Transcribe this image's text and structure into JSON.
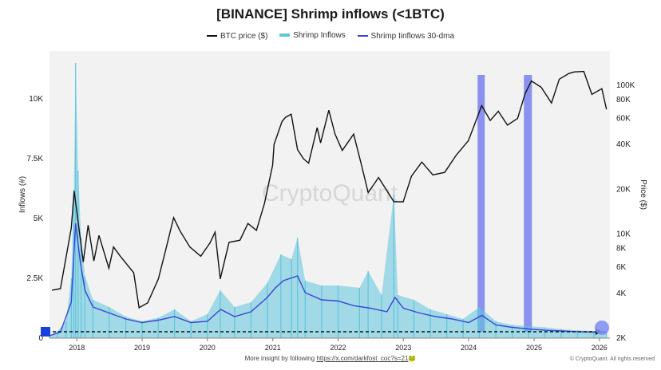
{
  "chart_data": {
    "type": "line",
    "title": "[BINANCE] Shrimp inflows (<1BTC)",
    "ylabel": "Inflows (#)",
    "y2label": "Price ($)",
    "ylim": [
      0,
      12000
    ],
    "y2_scale": "log",
    "y2lim": [
      2000,
      170000
    ],
    "xlim": [
      "2017-08-01",
      "2026-03-01"
    ],
    "yticks": [
      0,
      2500,
      5000,
      7500,
      10000
    ],
    "ytick_labels": [
      "0",
      "2.5K",
      "5K",
      "7.5K",
      "10K"
    ],
    "y2ticks": [
      2000,
      4000,
      6000,
      8000,
      10000,
      20000,
      40000,
      60000,
      80000,
      100000
    ],
    "y2tick_labels": [
      "2K",
      "4K",
      "6K",
      "8K",
      "10K",
      "20K",
      "40K",
      "60K",
      "80K",
      "100K"
    ],
    "xticks": [
      "2018-01-01",
      "2019-01-01",
      "2020-01-01",
      "2021-01-01",
      "2022-01-01",
      "2023-01-01",
      "2024-01-01",
      "2025-01-01",
      "2026-01-01"
    ],
    "xtick_labels": [
      "2018",
      "2019",
      "2020",
      "2021",
      "2022",
      "2023",
      "2024",
      "2025",
      "2026"
    ],
    "legend_position": "top-center",
    "series": [
      {
        "name": "BTC price ($)",
        "axis": "right",
        "color": "#111111",
        "x": [
          "2017-08-15",
          "2017-10-01",
          "2017-12-01",
          "2017-12-17",
          "2018-02-06",
          "2018-03-05",
          "2018-04-06",
          "2018-05-05",
          "2018-06-29",
          "2018-07-25",
          "2018-09-01",
          "2018-11-15",
          "2018-12-15",
          "2019-02-01",
          "2019-04-02",
          "2019-05-15",
          "2019-06-26",
          "2019-08-01",
          "2019-09-25",
          "2019-11-25",
          "2020-01-15",
          "2020-02-13",
          "2020-03-13",
          "2020-05-01",
          "2020-07-01",
          "2020-08-15",
          "2020-10-01",
          "2020-11-15",
          "2020-12-31",
          "2021-01-08",
          "2021-02-21",
          "2021-03-13",
          "2021-04-14",
          "2021-05-19",
          "2021-06-22",
          "2021-07-20",
          "2021-09-06",
          "2021-09-25",
          "2021-11-10",
          "2021-12-15",
          "2022-01-24",
          "2022-03-29",
          "2022-05-12",
          "2022-06-18",
          "2022-08-15",
          "2022-11-09",
          "2022-12-31",
          "2023-02-15",
          "2023-04-14",
          "2023-06-15",
          "2023-08-20",
          "2023-10-24",
          "2023-12-31",
          "2024-03-14",
          "2024-05-01",
          "2024-06-15",
          "2024-08-05",
          "2024-10-01",
          "2024-11-12",
          "2024-12-17",
          "2025-02-10",
          "2025-04-08",
          "2025-05-22",
          "2025-07-14",
          "2025-08-14",
          "2025-10-06",
          "2025-11-20",
          "2026-01-15",
          "2026-02-10"
        ],
        "values": [
          4200,
          4300,
          11000,
          19500,
          6500,
          11500,
          6600,
          9800,
          5900,
          8200,
          7100,
          5500,
          3200,
          3450,
          5000,
          8000,
          12900,
          10500,
          8200,
          7100,
          8700,
          10300,
          5000,
          8800,
          9100,
          11800,
          10600,
          16000,
          29000,
          40000,
          57000,
          61000,
          64000,
          37000,
          32000,
          30000,
          52000,
          41000,
          68000,
          47000,
          36500,
          47000,
          29000,
          19000,
          24000,
          16500,
          16500,
          24500,
          30500,
          25000,
          26000,
          34000,
          42500,
          73000,
          58000,
          67000,
          54000,
          60000,
          88000,
          107000,
          97000,
          76000,
          110000,
          120000,
          123000,
          124000,
          87000,
          95000,
          69000
        ]
      },
      {
        "name": "Shrimp Inflows",
        "axis": "left",
        "color": "#5ec5dd",
        "x": [
          "2017-08-01",
          "2017-09-15",
          "2017-11-01",
          "2017-12-01",
          "2017-12-15",
          "2017-12-25",
          "2018-01-08",
          "2018-01-25",
          "2018-02-15",
          "2018-04-01",
          "2018-07-01",
          "2018-10-01",
          "2019-01-01",
          "2019-04-01",
          "2019-07-01",
          "2019-10-01",
          "2020-01-01",
          "2020-03-13",
          "2020-06-01",
          "2020-09-01",
          "2020-12-01",
          "2021-02-15",
          "2021-04-15",
          "2021-05-19",
          "2021-07-01",
          "2021-10-01",
          "2022-01-01",
          "2022-05-01",
          "2022-06-18",
          "2022-09-01",
          "2022-11-09",
          "2022-12-01",
          "2023-03-01",
          "2023-06-01",
          "2023-09-01",
          "2023-12-01",
          "2024-03-01",
          "2024-06-01",
          "2024-09-01",
          "2024-12-01",
          "2025-03-01",
          "2025-06-01",
          "2025-09-01",
          "2025-12-01",
          "2026-02-10"
        ],
        "values": [
          100,
          300,
          700,
          2500,
          6200,
          11500,
          7000,
          4200,
          2600,
          1600,
          1300,
          900,
          700,
          850,
          1200,
          700,
          1000,
          2000,
          1300,
          1500,
          2300,
          3500,
          3300,
          4200,
          2400,
          2200,
          2200,
          2100,
          2800,
          1800,
          6000,
          1800,
          1600,
          1200,
          1000,
          800,
          1300,
          700,
          550,
          500,
          450,
          380,
          320,
          300,
          300
        ]
      },
      {
        "name": "Shrimp Iinflows 30-dma",
        "axis": "left",
        "color": "#3a44d6",
        "x": [
          "2017-08-01",
          "2017-10-01",
          "2017-12-01",
          "2017-12-25",
          "2018-01-20",
          "2018-02-15",
          "2018-04-01",
          "2018-07-01",
          "2018-10-01",
          "2019-01-01",
          "2019-04-01",
          "2019-07-01",
          "2019-10-01",
          "2020-01-01",
          "2020-03-15",
          "2020-06-01",
          "2020-09-01",
          "2020-12-01",
          "2021-01-15",
          "2021-03-01",
          "2021-05-19",
          "2021-07-01",
          "2021-10-01",
          "2022-01-01",
          "2022-04-01",
          "2022-07-01",
          "2022-10-01",
          "2022-11-15",
          "2023-01-01",
          "2023-04-01",
          "2023-07-01",
          "2023-10-01",
          "2024-01-01",
          "2024-03-15",
          "2024-06-01",
          "2024-09-01",
          "2024-12-01",
          "2025-03-01",
          "2025-06-01",
          "2025-09-01",
          "2025-12-01",
          "2026-02-10"
        ],
        "values": [
          100,
          250,
          1500,
          4800,
          3200,
          2000,
          1300,
          1050,
          800,
          650,
          750,
          900,
          650,
          700,
          1200,
          900,
          1100,
          1700,
          2100,
          2400,
          2600,
          1900,
          1600,
          1550,
          1350,
          1250,
          1100,
          1700,
          1250,
          1050,
          900,
          800,
          650,
          950,
          550,
          450,
          380,
          330,
          300,
          270,
          250,
          240
        ]
      }
    ],
    "highlight_bands": [
      {
        "start": "2024-02-20",
        "end": "2024-03-31",
        "color": "#6f78ec"
      },
      {
        "start": "2024-11-05",
        "end": "2024-12-20",
        "color": "#6f78ec"
      }
    ],
    "watermark": "CryptoQuant"
  },
  "legend": {
    "price_label": "BTC price ($)",
    "shrimp_label": "Shrimp Inflows",
    "dma_label": "Shrimp Iinflows 30-dma"
  },
  "footer": {
    "text": "More insight by following",
    "link": "https://x.com/darkfost_coc?s=21",
    "emoji": "🐸",
    "credit": "© CryptoQuant. All rights reserved"
  }
}
